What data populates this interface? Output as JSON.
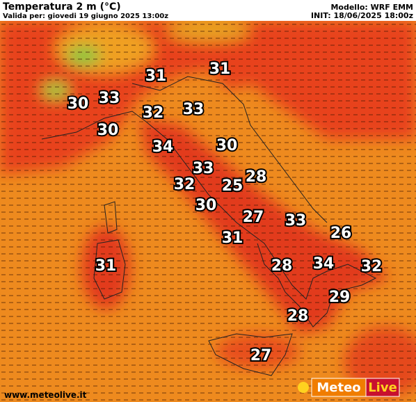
{
  "header": {
    "title": "Temperatura 2 m (°C)",
    "valid": "Valida per: giovedi 19 giugno 2025 13:00z",
    "model": "Modello: WRF EMM",
    "init": "INIT: 18/06/2025 18:00z"
  },
  "footer": {
    "site": "www.meteolive.it",
    "logo_left": "Meteo",
    "logo_right": "Live"
  },
  "map": {
    "labels": [
      31,
      31,
      33,
      30,
      32,
      33,
      30,
      34,
      30,
      33,
      28,
      32,
      25,
      30,
      27,
      33,
      26,
      31,
      31,
      28,
      34,
      32,
      29,
      28,
      27
    ]
  }
}
